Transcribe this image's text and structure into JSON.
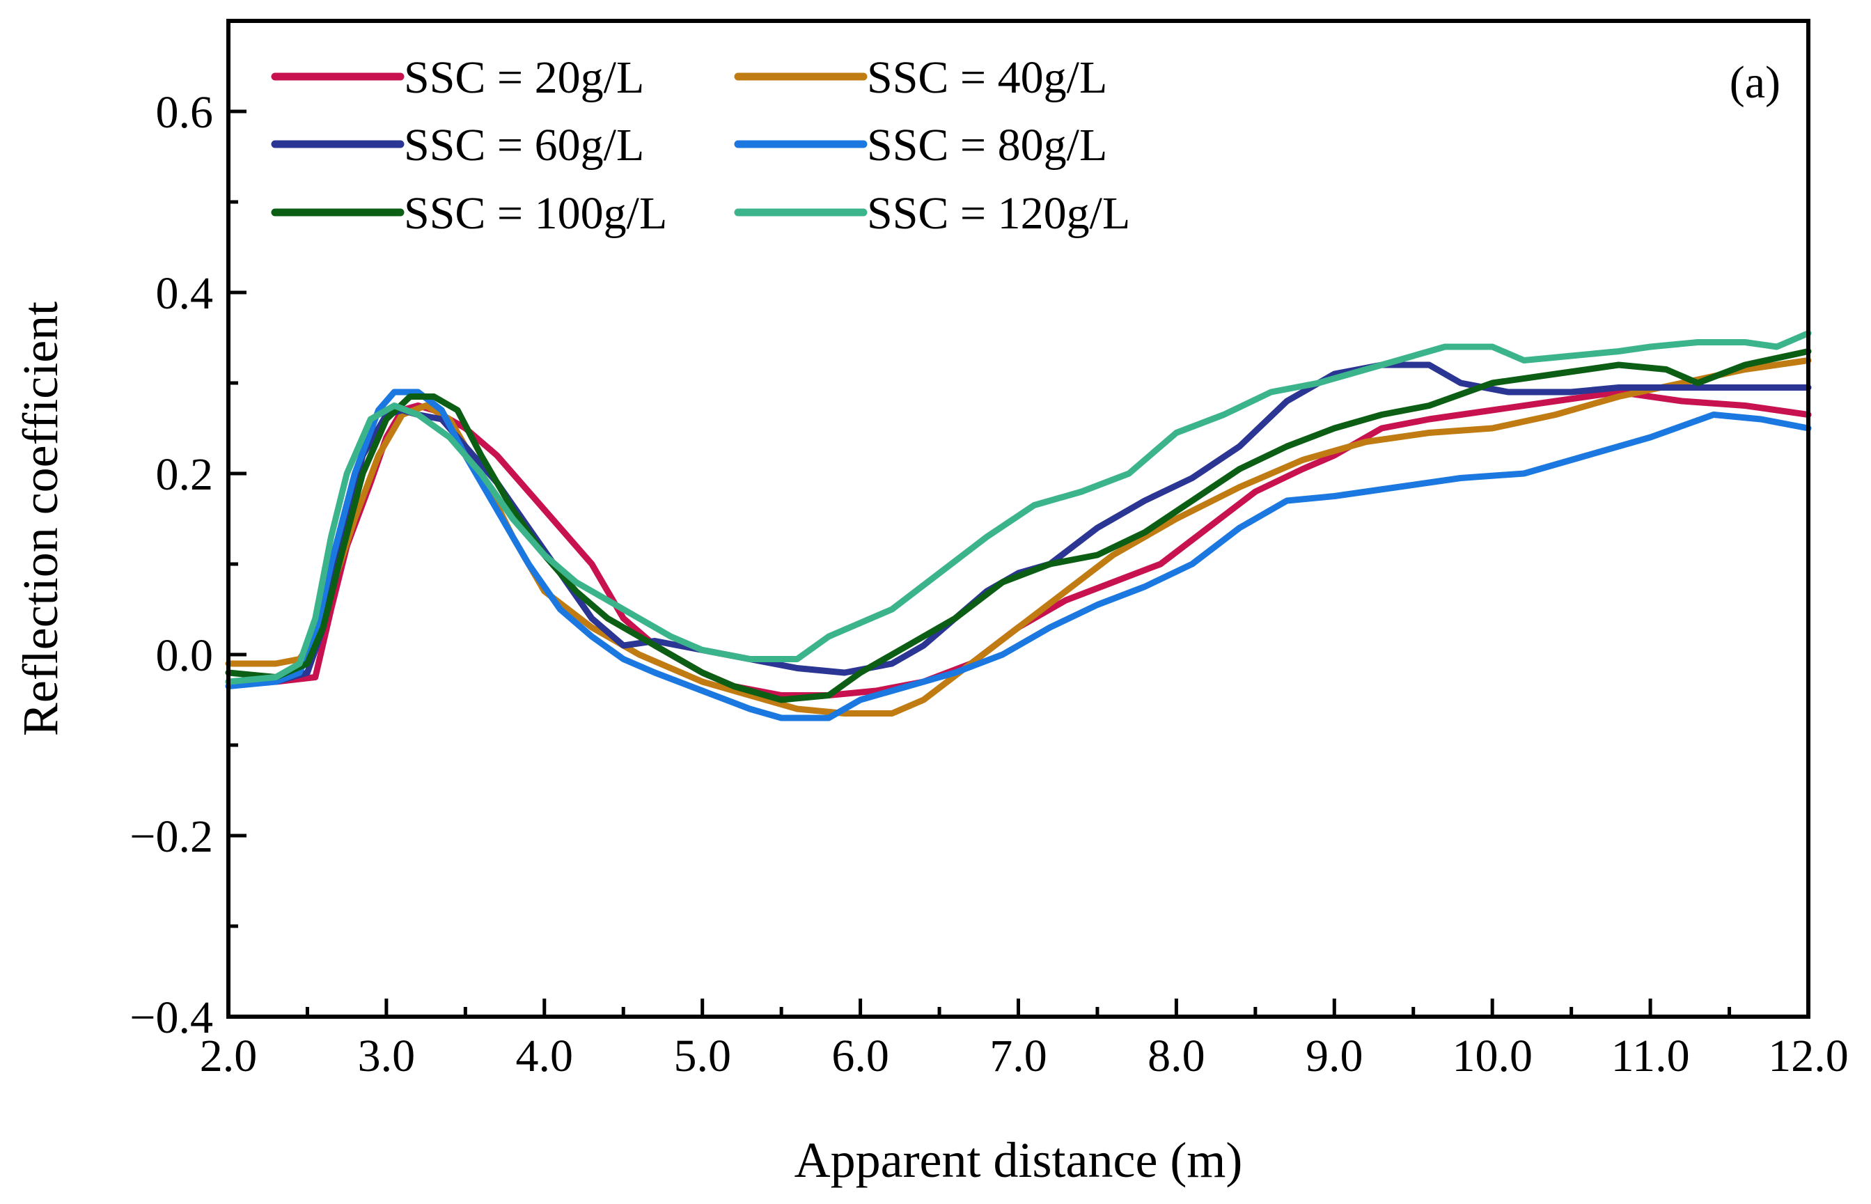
{
  "chart_data": {
    "type": "line",
    "title": "",
    "panel_label": "(a)",
    "xlabel": "Apparent distance (m)",
    "ylabel": "Reflection coefficient",
    "xlim": [
      2.0,
      12.0
    ],
    "ylim": [
      -0.4,
      0.7
    ],
    "xticks": [
      2.0,
      3.0,
      4.0,
      5.0,
      6.0,
      7.0,
      8.0,
      9.0,
      10.0,
      11.0,
      12.0
    ],
    "xtick_labels": [
      "2.0",
      "3.0",
      "4.0",
      "5.0",
      "6.0",
      "7.0",
      "8.0",
      "9.0",
      "10.0",
      "11.0",
      "12.0"
    ],
    "yticks": [
      -0.4,
      -0.2,
      0.0,
      0.2,
      0.4,
      0.6
    ],
    "ytick_labels": [
      "−0.4",
      "−0.2",
      "0.0",
      "0.2",
      "0.4",
      "0.6"
    ],
    "legend_position": "top-left",
    "grid": false,
    "series": [
      {
        "name": "SSC = 20g/L",
        "color": "#c8124f",
        "x": [
          2.0,
          2.3,
          2.55,
          2.65,
          2.75,
          2.9,
          3.0,
          3.1,
          3.2,
          3.3,
          3.5,
          3.7,
          3.9,
          4.1,
          4.3,
          4.5,
          4.7,
          5.0,
          5.2,
          5.5,
          5.8,
          6.1,
          6.4,
          6.7,
          7.0,
          7.3,
          7.6,
          7.9,
          8.2,
          8.5,
          8.8,
          9.0,
          9.3,
          9.6,
          10.0,
          10.4,
          10.8,
          11.2,
          11.6,
          12.0
        ],
        "y": [
          -0.03,
          -0.03,
          -0.025,
          0.05,
          0.12,
          0.19,
          0.24,
          0.27,
          0.275,
          0.27,
          0.25,
          0.22,
          0.18,
          0.14,
          0.1,
          0.04,
          0.01,
          -0.02,
          -0.035,
          -0.045,
          -0.045,
          -0.04,
          -0.03,
          -0.01,
          0.03,
          0.06,
          0.08,
          0.1,
          0.14,
          0.18,
          0.205,
          0.22,
          0.25,
          0.26,
          0.27,
          0.28,
          0.29,
          0.28,
          0.275,
          0.265
        ]
      },
      {
        "name": "SSC = 40g/L",
        "color": "#c07c12",
        "x": [
          2.0,
          2.3,
          2.45,
          2.55,
          2.65,
          2.8,
          2.95,
          3.1,
          3.25,
          3.4,
          3.6,
          3.8,
          4.0,
          4.3,
          4.6,
          5.0,
          5.3,
          5.6,
          5.9,
          6.2,
          6.4,
          6.7,
          7.0,
          7.3,
          7.6,
          8.0,
          8.4,
          8.8,
          9.2,
          9.6,
          10.0,
          10.4,
          10.8,
          11.2,
          11.6,
          12.0
        ],
        "y": [
          -0.01,
          -0.01,
          -0.005,
          0.02,
          0.07,
          0.15,
          0.22,
          0.265,
          0.275,
          0.26,
          0.2,
          0.13,
          0.07,
          0.03,
          0.0,
          -0.03,
          -0.045,
          -0.06,
          -0.065,
          -0.065,
          -0.05,
          -0.01,
          0.03,
          0.07,
          0.11,
          0.15,
          0.185,
          0.215,
          0.235,
          0.245,
          0.25,
          0.265,
          0.285,
          0.3,
          0.315,
          0.325
        ]
      },
      {
        "name": "SSC = 60g/L",
        "color": "#2b3593",
        "x": [
          2.0,
          2.3,
          2.5,
          2.6,
          2.7,
          2.85,
          3.0,
          3.1,
          3.2,
          3.35,
          3.5,
          3.7,
          3.9,
          4.1,
          4.3,
          4.5,
          4.7,
          5.0,
          5.3,
          5.6,
          5.9,
          6.2,
          6.4,
          6.6,
          6.8,
          7.0,
          7.2,
          7.5,
          7.8,
          8.1,
          8.4,
          8.7,
          9.0,
          9.3,
          9.6,
          9.8,
          10.1,
          10.5,
          10.8,
          11.2,
          11.6,
          12.0
        ],
        "y": [
          -0.03,
          -0.03,
          -0.02,
          0.03,
          0.12,
          0.22,
          0.265,
          0.27,
          0.265,
          0.26,
          0.23,
          0.19,
          0.14,
          0.09,
          0.04,
          0.01,
          0.015,
          0.005,
          -0.005,
          -0.015,
          -0.02,
          -0.01,
          0.01,
          0.04,
          0.07,
          0.09,
          0.1,
          0.14,
          0.17,
          0.195,
          0.23,
          0.28,
          0.31,
          0.32,
          0.32,
          0.3,
          0.29,
          0.29,
          0.295,
          0.295,
          0.295,
          0.295
        ]
      },
      {
        "name": "SSC = 80g/L",
        "color": "#1a78e0",
        "x": [
          2.0,
          2.3,
          2.45,
          2.55,
          2.65,
          2.8,
          2.95,
          3.05,
          3.2,
          3.35,
          3.5,
          3.7,
          3.9,
          4.1,
          4.3,
          4.5,
          4.7,
          5.0,
          5.3,
          5.5,
          5.8,
          6.0,
          6.3,
          6.6,
          6.9,
          7.2,
          7.5,
          7.8,
          8.1,
          8.4,
          8.7,
          9.0,
          9.4,
          9.8,
          10.2,
          10.6,
          11.0,
          11.4,
          11.7,
          12.0
        ],
        "y": [
          -0.035,
          -0.03,
          -0.02,
          0.02,
          0.1,
          0.2,
          0.27,
          0.29,
          0.29,
          0.27,
          0.22,
          0.16,
          0.1,
          0.05,
          0.02,
          -0.005,
          -0.02,
          -0.04,
          -0.06,
          -0.07,
          -0.07,
          -0.05,
          -0.035,
          -0.02,
          0.0,
          0.03,
          0.055,
          0.075,
          0.1,
          0.14,
          0.17,
          0.175,
          0.185,
          0.195,
          0.2,
          0.22,
          0.24,
          0.265,
          0.26,
          0.25
        ]
      },
      {
        "name": "SSC = 100g/L",
        "color": "#0b5e14",
        "x": [
          2.0,
          2.3,
          2.5,
          2.6,
          2.7,
          2.85,
          3.0,
          3.15,
          3.3,
          3.45,
          3.6,
          3.8,
          4.0,
          4.2,
          4.4,
          4.6,
          4.8,
          5.0,
          5.2,
          5.5,
          5.8,
          6.0,
          6.3,
          6.6,
          6.9,
          7.2,
          7.5,
          7.8,
          8.1,
          8.4,
          8.7,
          9.0,
          9.3,
          9.6,
          10.0,
          10.4,
          10.8,
          11.1,
          11.3,
          11.6,
          12.0
        ],
        "y": [
          -0.02,
          -0.025,
          -0.01,
          0.03,
          0.1,
          0.2,
          0.26,
          0.285,
          0.285,
          0.27,
          0.22,
          0.16,
          0.11,
          0.07,
          0.04,
          0.02,
          0.0,
          -0.02,
          -0.035,
          -0.05,
          -0.045,
          -0.02,
          0.01,
          0.04,
          0.08,
          0.1,
          0.11,
          0.135,
          0.17,
          0.205,
          0.23,
          0.25,
          0.265,
          0.275,
          0.3,
          0.31,
          0.32,
          0.315,
          0.3,
          0.32,
          0.335
        ]
      },
      {
        "name": "SSC = 120g/L",
        "color": "#3cb48b",
        "x": [
          2.0,
          2.3,
          2.45,
          2.55,
          2.65,
          2.75,
          2.9,
          3.05,
          3.2,
          3.4,
          3.6,
          3.8,
          4.0,
          4.2,
          4.4,
          4.6,
          4.8,
          5.0,
          5.3,
          5.6,
          5.8,
          6.0,
          6.2,
          6.5,
          6.8,
          7.1,
          7.4,
          7.7,
          8.0,
          8.3,
          8.6,
          8.9,
          9.2,
          9.5,
          9.7,
          10.0,
          10.2,
          10.5,
          10.8,
          11.0,
          11.3,
          11.6,
          11.8,
          12.0
        ],
        "y": [
          -0.03,
          -0.025,
          -0.01,
          0.04,
          0.13,
          0.2,
          0.26,
          0.275,
          0.265,
          0.24,
          0.2,
          0.15,
          0.11,
          0.08,
          0.06,
          0.04,
          0.02,
          0.005,
          -0.005,
          -0.005,
          0.02,
          0.035,
          0.05,
          0.09,
          0.13,
          0.165,
          0.18,
          0.2,
          0.245,
          0.265,
          0.29,
          0.3,
          0.315,
          0.33,
          0.34,
          0.34,
          0.325,
          0.33,
          0.335,
          0.34,
          0.345,
          0.345,
          0.34,
          0.355
        ]
      }
    ]
  }
}
